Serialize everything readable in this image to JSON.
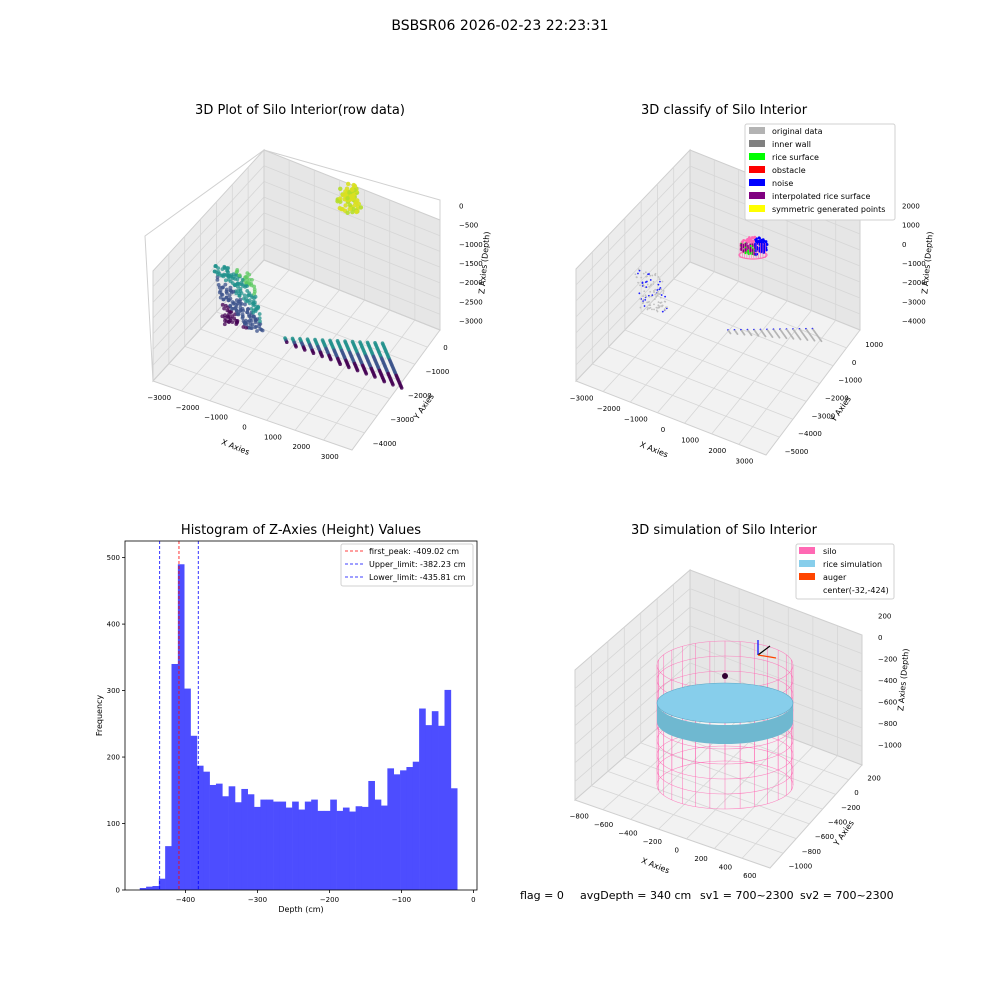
{
  "suptitle": "BSBSR06 2026-02-23 22:23:31",
  "footer": {
    "flag": "flag = 0",
    "avg": "avgDepth = 340 cm",
    "sv1": "sv1 = 700~2300",
    "sv2": "sv2 = 700~2300"
  },
  "chart_data": [
    {
      "type": "scatter",
      "projection": "3d",
      "title": "3D Plot of Silo Interior(row data)",
      "xlabel": "X Axies",
      "ylabel": "Y Axies",
      "zlabel": "Z Axies (Depth)",
      "x_ticks": [
        "−3000",
        "−2000",
        "−1000",
        "0",
        "1000",
        "2000",
        "3000"
      ],
      "y_ticks": [
        "0",
        "−1000",
        "−2000",
        "−3000",
        "−4000"
      ],
      "z_ticks": [
        "0",
        "−500",
        "−1000",
        "−1500",
        "−2000",
        "−2500",
        "−3000"
      ],
      "xlim": [
        -3500,
        3500
      ],
      "ylim": [
        -4200,
        300
      ],
      "zlim": [
        -3300,
        100
      ],
      "grid": true,
      "colors": [
        "#440154",
        "#3b528b",
        "#21918c",
        "#5ec962",
        "#fde725"
      ]
    },
    {
      "type": "scatter",
      "projection": "3d",
      "title": "3D classify of Silo Interior",
      "xlabel": "X Axies",
      "ylabel": "Y Axies",
      "zlabel": "Z Axies (Depth)",
      "x_ticks": [
        "−3000",
        "−2000",
        "−1000",
        "0",
        "1000",
        "2000",
        "3000"
      ],
      "y_ticks": [
        "1000",
        "0",
        "−1000",
        "−2000",
        "−3000",
        "−4000",
        "−5000"
      ],
      "z_ticks": [
        "2000",
        "1000",
        "0",
        "−1000",
        "−2000",
        "−3000",
        "−4000"
      ],
      "grid": true,
      "legend_position": "top-right",
      "legend": [
        {
          "label": "original data",
          "color": "#b3b3b3"
        },
        {
          "label": "inner wall",
          "color": "#808080"
        },
        {
          "label": "rice surface",
          "color": "#00ff00"
        },
        {
          "label": "obstacle",
          "color": "#ff0000"
        },
        {
          "label": "noise",
          "color": "#0000ff"
        },
        {
          "label": "interpolated rice surface",
          "color": "#800080"
        },
        {
          "label": "symmetric generated points",
          "color": "#ffff00"
        }
      ]
    },
    {
      "type": "bar",
      "title": "Histogram of Z-Axies (Height) Values",
      "xlabel": "Depth (cm)",
      "ylabel": "Frequency",
      "xlim": [
        -484,
        5
      ],
      "ylim": [
        0,
        525
      ],
      "x_ticks": [
        -400,
        -300,
        -200,
        -100,
        0
      ],
      "x_tick_labels": [
        "−400",
        "−300",
        "−200",
        "−100",
        "0"
      ],
      "y_ticks": [
        0,
        100,
        200,
        300,
        400,
        500
      ],
      "bar_color": "#4d4dff",
      "bin_start": -463.5,
      "bin_width": 8.82,
      "values": [
        3,
        5,
        6,
        17,
        66,
        340,
        490,
        303,
        232,
        187,
        178,
        158,
        160,
        141,
        156,
        132,
        152,
        144,
        125,
        136,
        136,
        133,
        133,
        124,
        133,
        121,
        133,
        136,
        119,
        119,
        136,
        119,
        124,
        118,
        126,
        125,
        164,
        136,
        127,
        183,
        174,
        180,
        185,
        193,
        273,
        248,
        269,
        247,
        301,
        153
      ],
      "lines": [
        {
          "label": "first_peak: -409.02 cm",
          "x": -409.02,
          "color": "#ff0000"
        },
        {
          "label": "Upper_limit: -382.23 cm",
          "x": -382.23,
          "color": "#0000ff"
        },
        {
          "label": "Lower_limit: -435.81 cm",
          "x": -435.81,
          "color": "#0000ff"
        }
      ],
      "legend_position": "top-right"
    },
    {
      "type": "scatter",
      "projection": "3d",
      "title": "3D simulation of Silo Interior",
      "xlabel": "X Axies",
      "ylabel": "Y Axies",
      "zlabel": "Z Axies (Depth)",
      "x_ticks": [
        "−800",
        "−600",
        "−400",
        "−200",
        "0",
        "200",
        "400",
        "600"
      ],
      "y_ticks": [
        "200",
        "0",
        "−200",
        "−400",
        "−600",
        "−800",
        "−1000"
      ],
      "z_ticks": [
        "200",
        "0",
        "−200",
        "−400",
        "−600",
        "−800",
        "−1000"
      ],
      "grid": true,
      "legend_position": "top-right",
      "legend": [
        {
          "label": "silo",
          "color": "#ff69b4"
        },
        {
          "label": "rice simulation",
          "color": "#87ceeb"
        },
        {
          "label": "auger",
          "color": "#ff4500"
        },
        {
          "label": "center(-32,-424)",
          "color": ""
        }
      ]
    }
  ]
}
